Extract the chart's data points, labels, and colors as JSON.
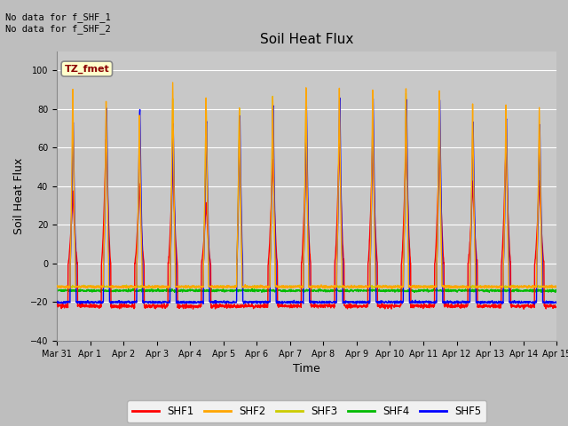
{
  "title": "Soil Heat Flux",
  "xlabel": "Time",
  "ylabel": "Soil Heat Flux",
  "ylim": [
    -40,
    110
  ],
  "yticks": [
    -40,
    -20,
    0,
    20,
    40,
    60,
    80,
    100
  ],
  "annotation_top": "No data for f_SHF_1\nNo data for f_SHF_2",
  "tz_label": "TZ_fmet",
  "colors": {
    "SHF1": "#ff0000",
    "SHF2": "#ffa500",
    "SHF3": "#cccc00",
    "SHF4": "#00bb00",
    "SHF5": "#0000ff"
  },
  "legend_labels": [
    "SHF1",
    "SHF2",
    "SHF3",
    "SHF4",
    "SHF5"
  ],
  "fig_bg_color": "#bebebe",
  "plot_bg_color": "#c8c8c8",
  "tick_labels": [
    "Mar 31",
    "Apr 1",
    "Apr 2",
    "Apr 3",
    "Apr 4",
    "Apr 5",
    "Apr 6",
    "Apr 7",
    "Apr 8",
    "Apr 9",
    "Apr 10",
    "Apr 11",
    "Apr 12",
    "Apr 13",
    "Apr 14",
    "Apr 15"
  ],
  "n_days": 16,
  "title_fontsize": 11,
  "axis_fontsize": 9,
  "tick_fontsize": 7
}
